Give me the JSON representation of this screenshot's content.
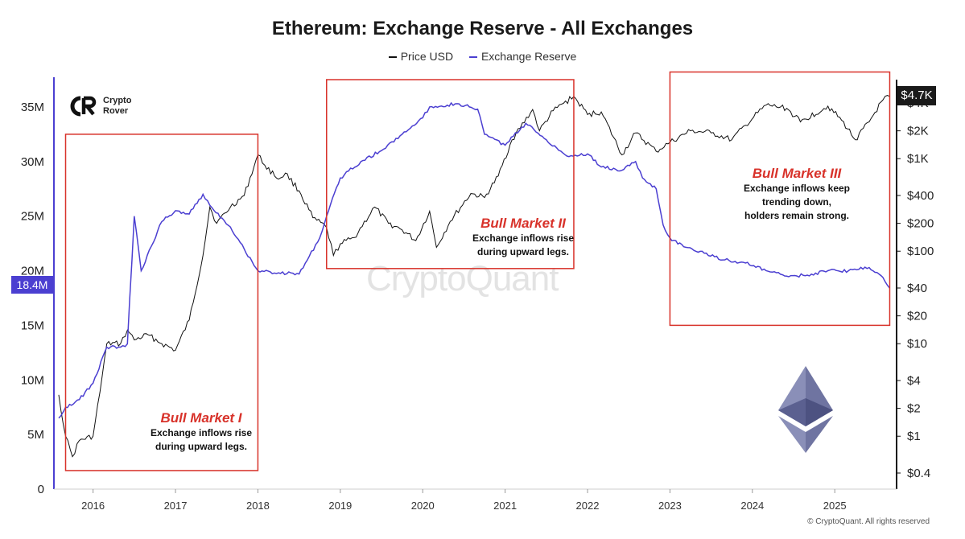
{
  "header": {
    "title": "Ethereum: Exchange Reserve - All Exchanges"
  },
  "legend": {
    "price_label": "Price USD",
    "reserve_label": "Exchange Reserve"
  },
  "brand": {
    "line1": "Crypto",
    "line2": "Rover"
  },
  "watermark": "CryptoQuant",
  "copyright": "© CryptoQuant. All rights reserved",
  "colors": {
    "price": "#111111",
    "reserve": "#4b3fd1",
    "box": "#d8322a",
    "annotation_heading": "#d8322a"
  },
  "annotations": [
    {
      "heading": "Bull Market I",
      "line1": "Exchange inflows rise",
      "line2": "during upward legs.",
      "line3": ""
    },
    {
      "heading": "Bull Market II",
      "line1": "Exchange inflows rise",
      "line2": "during upward legs.",
      "line3": ""
    },
    {
      "heading": "Bull Market III",
      "line1": "Exchange inflows keep",
      "line2": "trending down,",
      "line3": "holders remain strong."
    }
  ],
  "current": {
    "reserve_label": "18.4M",
    "price_label": "$4.7K"
  },
  "icons": [
    "crypto-rover-logo-icon",
    "ethereum-logo-icon"
  ],
  "chart_data": {
    "type": "line",
    "x_ticks": [
      "2016",
      "2017",
      "2018",
      "2019",
      "2020",
      "2021",
      "2022",
      "2023",
      "2024",
      "2025"
    ],
    "left_axis": {
      "label": "",
      "ticks": [
        "0",
        "5M",
        "10M",
        "15M",
        "20M",
        "25M",
        "30M",
        "35M"
      ],
      "range": [
        0,
        37500000
      ]
    },
    "right_axis": {
      "label": "",
      "scale": "log",
      "ticks": [
        "$0.4",
        "$1",
        "$2",
        "$4",
        "$10",
        "$20",
        "$40",
        "$100",
        "$200",
        "$400",
        "$1K",
        "$2K",
        "$4K"
      ],
      "tick_values": [
        0.4,
        1,
        2,
        4,
        10,
        20,
        40,
        100,
        200,
        400,
        1000,
        2000,
        4000
      ]
    },
    "series": [
      {
        "name": "Exchange Reserve",
        "axis": "left",
        "points": [
          [
            "2015-08",
            6500000
          ],
          [
            "2015-09",
            7500000
          ],
          [
            "2015-11",
            8200000
          ],
          [
            "2016-01",
            9700000
          ],
          [
            "2016-03",
            13000000
          ],
          [
            "2016-05",
            13000000
          ],
          [
            "2016-06",
            13300000
          ],
          [
            "2016-07",
            25000000
          ],
          [
            "2016-08",
            20000000
          ],
          [
            "2016-11",
            24500000
          ],
          [
            "2017-01",
            25500000
          ],
          [
            "2017-03",
            25200000
          ],
          [
            "2017-05",
            27000000
          ],
          [
            "2017-06",
            26000000
          ],
          [
            "2017-09",
            24000000
          ],
          [
            "2017-11",
            22000000
          ],
          [
            "2018-01",
            20000000
          ],
          [
            "2018-04",
            19800000
          ],
          [
            "2018-07",
            19700000
          ],
          [
            "2018-10",
            23000000
          ],
          [
            "2018-11",
            25000000
          ],
          [
            "2019-01",
            28500000
          ],
          [
            "2019-04",
            30000000
          ],
          [
            "2019-07",
            31000000
          ],
          [
            "2019-10",
            32500000
          ],
          [
            "2020-01",
            34000000
          ],
          [
            "2020-02",
            35000000
          ],
          [
            "2020-06",
            35300000
          ],
          [
            "2020-09",
            34800000
          ],
          [
            "2020-10",
            32500000
          ],
          [
            "2021-01",
            31500000
          ],
          [
            "2021-04",
            33500000
          ],
          [
            "2021-07",
            32000000
          ],
          [
            "2021-10",
            30500000
          ],
          [
            "2022-01",
            30700000
          ],
          [
            "2022-03",
            29500000
          ],
          [
            "2022-06",
            29200000
          ],
          [
            "2022-08",
            30000000
          ],
          [
            "2022-09",
            28500000
          ],
          [
            "2022-11",
            27500000
          ],
          [
            "2022-12",
            24200000
          ],
          [
            "2023-01",
            23000000
          ],
          [
            "2023-03",
            22200000
          ],
          [
            "2023-06",
            21600000
          ],
          [
            "2023-09",
            21000000
          ],
          [
            "2023-12",
            20700000
          ],
          [
            "2024-03",
            20000000
          ],
          [
            "2024-06",
            19500000
          ],
          [
            "2024-09",
            19600000
          ],
          [
            "2024-12",
            20000000
          ],
          [
            "2025-03",
            20000000
          ],
          [
            "2025-06",
            20300000
          ],
          [
            "2025-08",
            19400000
          ],
          [
            "2025-09",
            18400000
          ]
        ]
      },
      {
        "name": "Price USD",
        "axis": "right",
        "points": [
          [
            "2015-08",
            2.8
          ],
          [
            "2015-09",
            1.0
          ],
          [
            "2015-10",
            0.6
          ],
          [
            "2015-11",
            0.9
          ],
          [
            "2016-01",
            1.0
          ],
          [
            "2016-02",
            3.0
          ],
          [
            "2016-03",
            10.0
          ],
          [
            "2016-05",
            10.0
          ],
          [
            "2016-06",
            14.0
          ],
          [
            "2016-07",
            11.0
          ],
          [
            "2016-09",
            12.5
          ],
          [
            "2016-11",
            10.0
          ],
          [
            "2017-01",
            8.5
          ],
          [
            "2017-03",
            18.0
          ],
          [
            "2017-05",
            90.0
          ],
          [
            "2017-06",
            300.0
          ],
          [
            "2017-07",
            200.0
          ],
          [
            "2017-09",
            300.0
          ],
          [
            "2017-11",
            400.0
          ],
          [
            "2018-01",
            1100.0
          ],
          [
            "2018-02",
            850.0
          ],
          [
            "2018-04",
            600.0
          ],
          [
            "2018-05",
            700.0
          ],
          [
            "2018-07",
            450.0
          ],
          [
            "2018-09",
            230.0
          ],
          [
            "2018-11",
            180.0
          ],
          [
            "2018-12",
            90.0
          ],
          [
            "2019-01",
            120.0
          ],
          [
            "2019-03",
            140.0
          ],
          [
            "2019-06",
            300.0
          ],
          [
            "2019-08",
            200.0
          ],
          [
            "2019-10",
            170.0
          ],
          [
            "2019-12",
            130.0
          ],
          [
            "2020-02",
            270.0
          ],
          [
            "2020-03",
            110.0
          ],
          [
            "2020-05",
            210.0
          ],
          [
            "2020-08",
            420.0
          ],
          [
            "2020-10",
            380.0
          ],
          [
            "2020-12",
            650.0
          ],
          [
            "2021-02",
            1600.0
          ],
          [
            "2021-05",
            3400.0
          ],
          [
            "2021-06",
            2000.0
          ],
          [
            "2021-08",
            3300.0
          ],
          [
            "2021-11",
            4700.0
          ],
          [
            "2022-01",
            3000.0
          ],
          [
            "2022-03",
            3200.0
          ],
          [
            "2022-06",
            1100.0
          ],
          [
            "2022-08",
            1900.0
          ],
          [
            "2022-11",
            1200.0
          ],
          [
            "2023-01",
            1500.0
          ],
          [
            "2023-04",
            2000.0
          ],
          [
            "2023-07",
            1900.0
          ],
          [
            "2023-10",
            1600.0
          ],
          [
            "2023-12",
            2300.0
          ],
          [
            "2024-03",
            3800.0
          ],
          [
            "2024-06",
            3500.0
          ],
          [
            "2024-08",
            2500.0
          ],
          [
            "2024-12",
            3700.0
          ],
          [
            "2025-02",
            2600.0
          ],
          [
            "2025-04",
            1600.0
          ],
          [
            "2025-06",
            2500.0
          ],
          [
            "2025-08",
            4300.0
          ],
          [
            "2025-09",
            4700.0
          ]
        ]
      }
    ],
    "highlights": [
      {
        "label": "Bull Market I",
        "x_range": [
          "2015-09",
          "2018-01"
        ],
        "y_range": [
          1700000,
          32500000
        ]
      },
      {
        "label": "Bull Market II",
        "x_range": [
          "2018-11",
          "2021-11"
        ],
        "y_range": [
          20200000,
          37500000
        ]
      },
      {
        "label": "Bull Market III",
        "x_range": [
          "2023-01",
          "2025-09"
        ],
        "y_range": [
          15000000,
          38200000
        ]
      }
    ]
  }
}
